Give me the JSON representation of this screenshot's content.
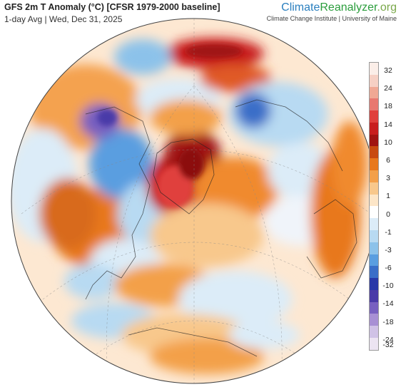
{
  "header": {
    "title": "GFS 2m T Anomaly (°C) [CFSR 1979-2000 baseline]",
    "subtitle": "1-day Avg | Wed, Dec 31, 2025"
  },
  "brand": {
    "name_part1": "Climate",
    "name_part2": "Reanalyzer",
    "name_part3": ".org",
    "affiliation": "Climate Change Institute | University of Maine"
  },
  "legend": {
    "colors": [
      "#fbeee8",
      "#f6d0c4",
      "#f0a894",
      "#e87870",
      "#e0403c",
      "#c81e1e",
      "#a01412",
      "#c84a10",
      "#e8781c",
      "#f3a04a",
      "#f8c88c",
      "#fde6c8",
      "#ffffff",
      "#dcecf8",
      "#b8daf2",
      "#8cc2ea",
      "#5a9ee0",
      "#3a6ec8",
      "#2838a8",
      "#4a3aa8",
      "#7860c0",
      "#a890d4",
      "#d0c2e6",
      "#ece4f2"
    ],
    "ticks": [
      "32",
      "24",
      "18",
      "14",
      "10",
      "6",
      "3",
      "1",
      "0",
      "-1",
      "-3",
      "-6",
      "-10",
      "-14",
      "-18",
      "-24",
      "-32"
    ]
  },
  "map": {
    "projection": "orthographic",
    "region": "North America and North Atlantic",
    "warm_color": "#e8781c",
    "hot_color": "#c81e1e",
    "cold_color": "#5a9ee0"
  }
}
